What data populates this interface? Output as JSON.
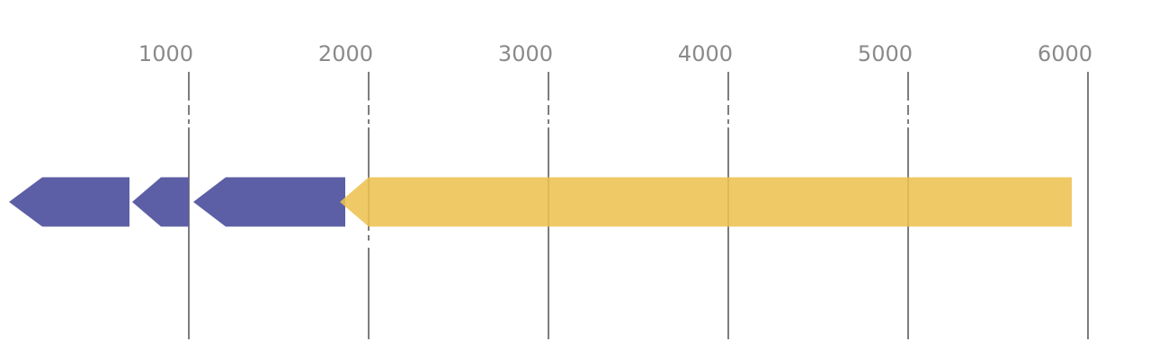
{
  "figure": {
    "background_color": "#ffffff",
    "axis": {
      "side": "top",
      "unit": "bp",
      "label_color": "#8a8a8a",
      "gridline_color": "#7d7d7d",
      "ticks": [
        {
          "value": 1000,
          "label": "1000",
          "upper_dash_break": true,
          "lower_dash_break": false
        },
        {
          "value": 2000,
          "label": "2000",
          "upper_dash_break": true,
          "lower_dash_break": true
        },
        {
          "value": 3000,
          "label": "3000",
          "upper_dash_break": true,
          "lower_dash_break": false
        },
        {
          "value": 4000,
          "label": "4000",
          "upper_dash_break": true,
          "lower_dash_break": false
        },
        {
          "value": 5000,
          "label": "5000",
          "upper_dash_break": true,
          "lower_dash_break": false
        },
        {
          "value": 6000,
          "label": "6000",
          "upper_dash_break": false,
          "lower_dash_break": false
        }
      ]
    }
  },
  "chart_data": {
    "type": "gene-map",
    "orientation": "horizontal",
    "x_unit": "bp",
    "x_range": [
      -50,
      6345
    ],
    "x_ticks": [
      1000,
      2000,
      3000,
      4000,
      5000,
      6000
    ],
    "grid": true,
    "legend_position": "none",
    "title": "",
    "features": [
      {
        "id": "feature-1",
        "start": 0,
        "end": 670,
        "head_base": 185,
        "strand": "reverse",
        "color": "#5c5fa5",
        "opacity": 1
      },
      {
        "id": "feature-2",
        "start": 685,
        "end": 1000,
        "head_base": 845,
        "strand": "reverse",
        "color": "#5c5fa5",
        "opacity": 1
      },
      {
        "id": "feature-3",
        "start": 1025,
        "end": 1870,
        "head_base": 1205,
        "strand": "reverse",
        "color": "#5c5fa5",
        "opacity": 1
      },
      {
        "id": "feature-4",
        "start": 1840,
        "end": 5910,
        "head_base": 2000,
        "strand": "reverse",
        "color": "#edc151",
        "opacity": 0.88
      }
    ]
  }
}
